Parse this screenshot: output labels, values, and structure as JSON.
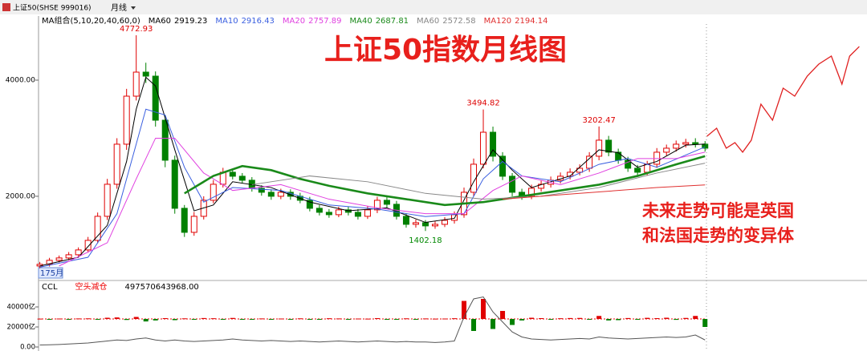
{
  "header": {
    "symbol": "上证50(SHSE 999016)",
    "period": "月线"
  },
  "chart_data": [
    {
      "type": "candlestick",
      "title": "上证50指数月线图",
      "legend_title": "MA组合(5,10,20,40,60,0)",
      "cursor_label": "175月",
      "note": [
        "未来走势可能是英国",
        "和法国走势的变异体"
      ],
      "xlim": [
        -0.3,
        85.3
      ],
      "ylim": [
        550,
        4966
      ],
      "yticks": [
        {
          "value": 2000,
          "label": "2000.00"
        },
        {
          "value": 4000,
          "label": "4000.00"
        }
      ],
      "up_color": "#e00000",
      "down_color": "#008000",
      "candles": {
        "open": [
          800,
          828,
          897,
          938,
          993,
          1076,
          1241,
          1655,
          2207,
          2897,
          3724,
          4138,
          4069,
          3310,
          2621,
          1793,
          1379,
          1655,
          1931,
          2207,
          2414,
          2345,
          2276,
          2138,
          2069,
          2000,
          2069,
          2000,
          1931,
          1793,
          1724,
          1683,
          1766,
          1724,
          1655,
          1766,
          1931,
          1862,
          1655,
          1517,
          1545,
          1490,
          1517,
          1586,
          1683,
          2069,
          2552,
          3103,
          2690,
          2345,
          2069,
          2000,
          2138,
          2207,
          2276,
          2345,
          2414,
          2483,
          2690,
          2966,
          2759,
          2621,
          2483,
          2414,
          2552,
          2759,
          2828,
          2897,
          2924,
          2897
        ],
        "high": [
          870,
          940,
          980,
          1040,
          1120,
          1300,
          1720,
          2300,
          3000,
          3850,
          4772.93,
          4300,
          4150,
          3400,
          2700,
          1850,
          1730,
          2000,
          2280,
          2490,
          2470,
          2400,
          2330,
          2190,
          2120,
          2130,
          2120,
          2060,
          1990,
          1850,
          1780,
          1820,
          1820,
          1780,
          1830,
          1990,
          1990,
          1920,
          1710,
          1600,
          1590,
          1570,
          1640,
          1740,
          2150,
          2650,
          3494.82,
          3200,
          2760,
          2400,
          2130,
          2200,
          2270,
          2340,
          2410,
          2480,
          2550,
          2760,
          3202.47,
          3040,
          2820,
          2680,
          2540,
          2610,
          2830,
          2890,
          2960,
          2990,
          3000,
          2950
        ],
        "low": [
          760,
          790,
          860,
          900,
          950,
          1030,
          1190,
          1590,
          2130,
          2800,
          3650,
          3950,
          3200,
          2500,
          1700,
          1300,
          1320,
          1600,
          1880,
          2150,
          2290,
          2220,
          2080,
          2010,
          1940,
          1950,
          1940,
          1880,
          1740,
          1670,
          1630,
          1640,
          1670,
          1600,
          1610,
          1710,
          1800,
          1600,
          1460,
          1460,
          1402.18,
          1440,
          1470,
          1530,
          1630,
          2000,
          2480,
          2600,
          2280,
          2000,
          1940,
          1950,
          2080,
          2150,
          2220,
          2290,
          2360,
          2420,
          2620,
          2690,
          2560,
          2420,
          2360,
          2360,
          2490,
          2700,
          2770,
          2840,
          2840,
          2770
        ],
        "close": [
          828,
          897,
          938,
          993,
          1076,
          1241,
          1655,
          2207,
          2897,
          3724,
          4138,
          4069,
          3310,
          2621,
          1793,
          1379,
          1655,
          1931,
          2207,
          2414,
          2345,
          2276,
          2138,
          2069,
          2000,
          2069,
          2000,
          1931,
          1793,
          1724,
          1683,
          1766,
          1724,
          1655,
          1766,
          1931,
          1862,
          1655,
          1517,
          1545,
          1490,
          1517,
          1586,
          1683,
          2069,
          2552,
          3103,
          2690,
          2345,
          2069,
          2000,
          2138,
          2207,
          2276,
          2345,
          2414,
          2483,
          2690,
          2966,
          2759,
          2621,
          2483,
          2414,
          2552,
          2759,
          2828,
          2897,
          2924,
          2897,
          2828
        ]
      },
      "labelled": {
        "high": [
          10,
          46,
          58
        ],
        "low": [
          40
        ]
      },
      "series": [
        {
          "name": "MA60",
          "current": 2919.23,
          "color": "#000000",
          "width": 1,
          "x": [
            0,
            4,
            7,
            9,
            10,
            11,
            12,
            14,
            16,
            18,
            20,
            24,
            28,
            32,
            36,
            40,
            43,
            45,
            47,
            49,
            51,
            55,
            58,
            60,
            62,
            64,
            67,
            69
          ],
          "values": [
            800,
            950,
            1500,
            2600,
            3500,
            4050,
            3900,
            2800,
            1750,
            1850,
            2250,
            2150,
            1900,
            1750,
            1800,
            1550,
            1620,
            2250,
            2800,
            2450,
            2150,
            2350,
            2800,
            2750,
            2500,
            2600,
            2880,
            2900
          ]
        },
        {
          "name": "MA10",
          "current": 2916.43,
          "color": "#3a5fe0",
          "width": 1,
          "x": [
            0,
            5,
            8,
            10,
            11,
            13,
            15,
            17,
            20,
            25,
            30,
            35,
            40,
            44,
            46,
            48,
            50,
            54,
            58,
            61,
            64,
            69
          ],
          "values": [
            780,
            950,
            1700,
            2900,
            3500,
            3400,
            2500,
            1900,
            2150,
            2100,
            1850,
            1780,
            1650,
            1700,
            2300,
            2600,
            2350,
            2250,
            2550,
            2650,
            2500,
            2850
          ]
        },
        {
          "name": "MA20",
          "current": 2757.89,
          "color": "#e040e0",
          "width": 1,
          "x": [
            2,
            7,
            10,
            12,
            14,
            17,
            20,
            25,
            30,
            35,
            40,
            44,
            47,
            50,
            54,
            58,
            62,
            66,
            69
          ],
          "values": [
            800,
            1200,
            2300,
            3000,
            3000,
            2400,
            2100,
            2200,
            1950,
            1800,
            1700,
            1700,
            2100,
            2350,
            2200,
            2400,
            2650,
            2650,
            2760
          ]
        },
        {
          "name": "MA40",
          "current": 2687.81,
          "color": "#1a8a1a",
          "width": 2.6,
          "x": [
            15,
            18,
            21,
            24,
            27,
            30,
            34,
            38,
            42,
            46,
            50,
            54,
            58,
            62,
            66,
            69
          ],
          "values": [
            2050,
            2350,
            2520,
            2450,
            2300,
            2180,
            2050,
            1950,
            1850,
            1900,
            2000,
            2100,
            2200,
            2350,
            2550,
            2690
          ]
        },
        {
          "name": "MA60",
          "current": 2572.58,
          "color": "#888888",
          "width": 1,
          "x": [
            22,
            28,
            34,
            40,
            46,
            52,
            58,
            64,
            69
          ],
          "values": [
            2200,
            2350,
            2250,
            2050,
            1950,
            2000,
            2150,
            2400,
            2570
          ]
        },
        {
          "name": "MA120",
          "current": 2194.14,
          "color": "#e03030",
          "width": 1,
          "x": [
            48,
            52,
            56,
            60,
            64,
            69
          ],
          "values": [
            1950,
            2000,
            2050,
            2100,
            2150,
            2195
          ]
        }
      ],
      "projection": {
        "color": "#e02020",
        "x": [
          69.2,
          70.2,
          71.2,
          72.1,
          72.9,
          73.8,
          74.8,
          76,
          77.1,
          78.3,
          79.6,
          80.8,
          82.1,
          83.2,
          84,
          85
        ],
        "values": [
          3034,
          3172,
          2828,
          2924,
          2759,
          2966,
          3586,
          3310,
          3862,
          3724,
          4069,
          4276,
          4414,
          3931,
          4414,
          4579
        ]
      }
    },
    {
      "type": "indicator",
      "name": "CCL",
      "signal": "空头减仓",
      "reading": {
        "value": 497570643968,
        "label": "497570643968.00"
      },
      "xlim": [
        -0.3,
        85.3
      ],
      "ylim": [
        0,
        52000
      ],
      "yticks": [
        {
          "value": 0,
          "label": "0.00"
        },
        {
          "value": 20000,
          "label": "20000亿"
        },
        {
          "value": 40000,
          "label": "40000亿"
        }
      ],
      "baseline": 28000,
      "up_color": "#e00000",
      "down_color": "#008000",
      "line_color": "#555555",
      "bars": [
        300,
        -200,
        400,
        -300,
        500,
        600,
        -800,
        1200,
        1500,
        -1000,
        2000,
        -2500,
        -1500,
        800,
        -1200,
        600,
        -400,
        900,
        700,
        -500,
        1000,
        -800,
        -600,
        500,
        -700,
        400,
        -300,
        600,
        -500,
        -400,
        700,
        500,
        -600,
        400,
        300,
        800,
        -500,
        -700,
        600,
        -400,
        500,
        300,
        400,
        700,
        18000,
        -12000,
        20000,
        -10000,
        8000,
        -6000,
        -1500,
        1200,
        800,
        -600,
        700,
        900,
        1000,
        -800,
        3000,
        -1500,
        -1200,
        900,
        -700,
        1100,
        800,
        1200,
        -900,
        1000,
        3000,
        -8000
      ],
      "line": [
        2000,
        2200,
        2500,
        3000,
        3500,
        4000,
        5000,
        6000,
        7000,
        6500,
        8000,
        9000,
        7000,
        6000,
        7000,
        6000,
        5500,
        6000,
        6500,
        7000,
        8000,
        7000,
        6500,
        6000,
        6500,
        6000,
        5500,
        6000,
        5500,
        5000,
        5500,
        6000,
        5500,
        5000,
        5500,
        6000,
        5500,
        5000,
        5500,
        5000,
        5000,
        4500,
        5000,
        6000,
        30000,
        48000,
        50000,
        35000,
        25000,
        15000,
        10000,
        8000,
        7500,
        7000,
        7500,
        8000,
        8500,
        8000,
        10000,
        9000,
        8500,
        8000,
        8500,
        9000,
        9500,
        10000,
        9500,
        10000,
        12000,
        7000
      ]
    }
  ]
}
